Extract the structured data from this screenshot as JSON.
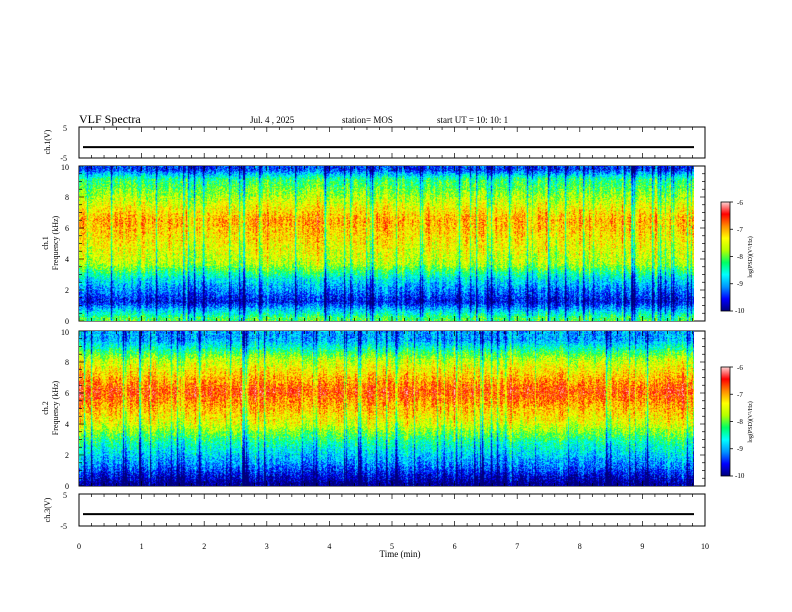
{
  "header": {
    "title": "VLF Spectra",
    "date": "Jul. 4 , 2025",
    "station": "station= MOS",
    "start_ut": "start  UT =   10: 10: 1"
  },
  "colors": {
    "colormap": [
      "#00007a",
      "#0000ff",
      "#0096ff",
      "#00ffff",
      "#00ff64",
      "#b4ff00",
      "#ffff00",
      "#ff8c00",
      "#ff0000",
      "#ffd4d4"
    ]
  },
  "chart_data": [
    {
      "id": "ch1-voltage",
      "type": "line",
      "title": "",
      "xlabel": "",
      "ylabel": "ch.1(V)",
      "xlim": [
        0,
        10
      ],
      "ylim": [
        -5,
        5
      ],
      "y_ticks": [
        "5",
        "-5"
      ],
      "baseline": -1.5
    },
    {
      "id": "ch1-spectrogram",
      "type": "heatmap",
      "title": "",
      "xlabel": "",
      "ylabel_line1": "ch.1",
      "ylabel_line2": "Frequency (kHz)",
      "xlim": [
        0,
        9.83
      ],
      "ylim": [
        0,
        10
      ],
      "y_ticks": [
        "0",
        "2",
        "4",
        "6",
        "8",
        "10"
      ],
      "colorbar": {
        "label": "log(PSD)(V²/Hz)",
        "ticks": [
          "-6",
          "-7",
          "-8",
          "-9",
          "-10"
        ],
        "range": [
          -10,
          -6
        ]
      },
      "bands": [
        {
          "f_low": 0,
          "f_high": 0.3,
          "log_psd": -8.1
        },
        {
          "f_low": 0.3,
          "f_high": 2.2,
          "log_psd": -9.6
        },
        {
          "f_low": 2.2,
          "f_high": 3.2,
          "log_psd": -8.7
        },
        {
          "f_low": 3.2,
          "f_high": 4.2,
          "log_psd": -7.7
        },
        {
          "f_low": 4.2,
          "f_high": 8.8,
          "log_psd": -7.0
        },
        {
          "f_low": 8.8,
          "f_high": 9.5,
          "log_psd": -8.3
        },
        {
          "f_low": 9.5,
          "f_high": 10,
          "log_psd": -9.4
        }
      ]
    },
    {
      "id": "ch2-spectrogram",
      "type": "heatmap",
      "title": "",
      "xlabel": "",
      "ylabel_line1": "ch.2",
      "ylabel_line2": "Frequency (kHz)",
      "xlim": [
        0,
        9.83
      ],
      "ylim": [
        0,
        10
      ],
      "y_ticks": [
        "0",
        "2",
        "4",
        "6",
        "8",
        "10"
      ],
      "colorbar": {
        "label": "log(PSD)(V²/Hz)",
        "ticks": [
          "-6",
          "-7",
          "-8",
          "-9",
          "-10"
        ],
        "range": [
          -10,
          -6
        ]
      },
      "bands": [
        {
          "f_low": 0,
          "f_high": 0.3,
          "log_psd": -10.0
        },
        {
          "f_low": 0.3,
          "f_high": 2.2,
          "log_psd": -9.2
        },
        {
          "f_low": 2.2,
          "f_high": 3.4,
          "log_psd": -8.4
        },
        {
          "f_low": 3.4,
          "f_high": 4.6,
          "log_psd": -7.5
        },
        {
          "f_low": 4.6,
          "f_high": 7.6,
          "log_psd": -6.6
        },
        {
          "f_low": 7.6,
          "f_high": 8.8,
          "log_psd": -7.7
        },
        {
          "f_low": 8.8,
          "f_high": 10,
          "log_psd": -9.0
        }
      ]
    },
    {
      "id": "ch3-voltage",
      "type": "line",
      "title": "",
      "xlabel": "Time (min)",
      "ylabel": "ch.3(V)",
      "xlim": [
        0,
        10
      ],
      "ylim": [
        -5,
        5
      ],
      "y_ticks": [
        "5",
        "-5"
      ],
      "x_ticks": [
        "0",
        "1",
        "2",
        "3",
        "4",
        "5",
        "6",
        "7",
        "8",
        "9",
        "10"
      ],
      "baseline": -1.3
    }
  ]
}
